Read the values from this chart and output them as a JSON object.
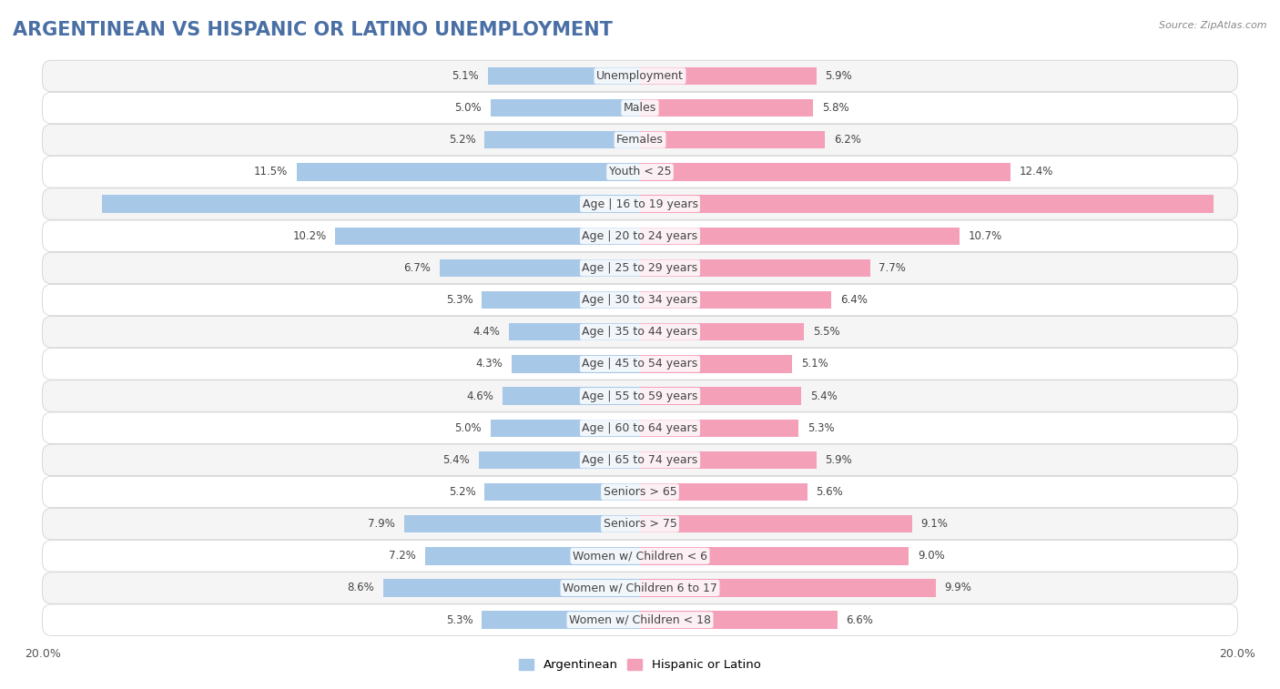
{
  "title": "ARGENTINEAN VS HISPANIC OR LATINO UNEMPLOYMENT",
  "source": "Source: ZipAtlas.com",
  "categories": [
    "Unemployment",
    "Males",
    "Females",
    "Youth < 25",
    "Age | 16 to 19 years",
    "Age | 20 to 24 years",
    "Age | 25 to 29 years",
    "Age | 30 to 34 years",
    "Age | 35 to 44 years",
    "Age | 45 to 54 years",
    "Age | 55 to 59 years",
    "Age | 60 to 64 years",
    "Age | 65 to 74 years",
    "Seniors > 65",
    "Seniors > 75",
    "Women w/ Children < 6",
    "Women w/ Children 6 to 17",
    "Women w/ Children < 18"
  ],
  "argentinean": [
    5.1,
    5.0,
    5.2,
    11.5,
    18.0,
    10.2,
    6.7,
    5.3,
    4.4,
    4.3,
    4.6,
    5.0,
    5.4,
    5.2,
    7.9,
    7.2,
    8.6,
    5.3
  ],
  "hispanic": [
    5.9,
    5.8,
    6.2,
    12.4,
    19.2,
    10.7,
    7.7,
    6.4,
    5.5,
    5.1,
    5.4,
    5.3,
    5.9,
    5.6,
    9.1,
    9.0,
    9.9,
    6.6
  ],
  "argentinean_color": "#a8c8e8",
  "hispanic_color": "#f4a0b8",
  "background_color": "#ffffff",
  "row_color_even": "#f5f5f5",
  "row_color_odd": "#ffffff",
  "max_value": 20.0,
  "legend_argentinean": "Argentinean",
  "legend_hispanic": "Hispanic or Latino",
  "title_fontsize": 15,
  "label_fontsize": 9,
  "value_fontsize": 8.5
}
